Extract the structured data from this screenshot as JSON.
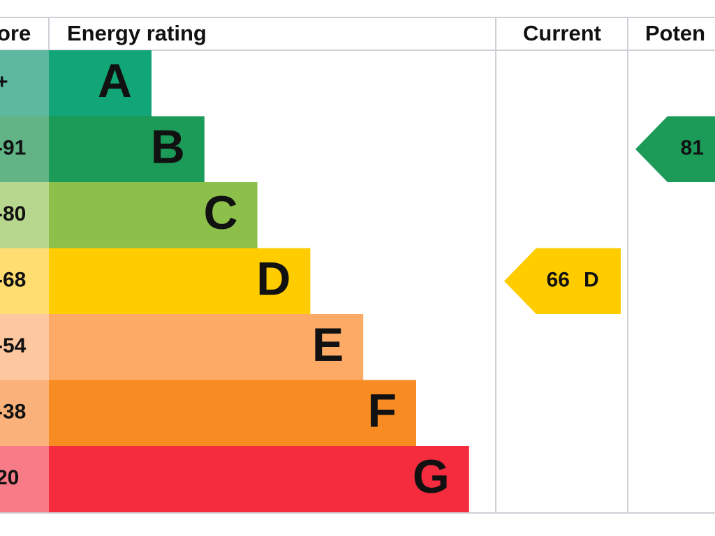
{
  "header": {
    "score": "ore",
    "rating": "Energy rating",
    "current": "Current",
    "potential": "Poten"
  },
  "bands": [
    {
      "score": "+",
      "letter": "A",
      "color": "#12a677",
      "light": "#5cb89f"
    },
    {
      "score": "-91",
      "letter": "B",
      "color": "#1b9a58",
      "light": "#62b487"
    },
    {
      "score": "-80",
      "letter": "C",
      "color": "#8dc04a",
      "light": "#b8d78e"
    },
    {
      "score": "-68",
      "letter": "D",
      "color": "#ffcc00",
      "light": "#ffdd70"
    },
    {
      "score": "-54",
      "letter": "E",
      "color": "#fcaa65",
      "light": "#fdc8a0"
    },
    {
      "score": "-38",
      "letter": "F",
      "color": "#f88b22",
      "light": "#fab27a"
    },
    {
      "score": "20",
      "letter": "G",
      "color": "#f52b3e",
      "light": "#f77c88"
    }
  ],
  "current": {
    "value": "66",
    "letter": "D",
    "band": 3,
    "color": "#ffcc00"
  },
  "potential": {
    "value": "81",
    "band": 1,
    "color": "#1b9a58"
  }
}
